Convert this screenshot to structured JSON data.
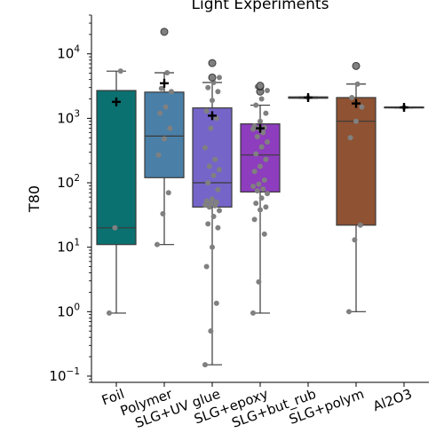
{
  "chart_data": {
    "type": "box",
    "title": "Light Experiments",
    "xlabel": "",
    "ylabel": "T80",
    "yscale": "log",
    "ylim": [
      0.08,
      40000
    ],
    "yticks": [
      {
        "value": 0.1,
        "base": "10",
        "exp": "−1"
      },
      {
        "value": 1,
        "base": "10",
        "exp": "0"
      },
      {
        "value": 10,
        "base": "10",
        "exp": "1"
      },
      {
        "value": 100,
        "base": "10",
        "exp": "2"
      },
      {
        "value": 1000,
        "base": "10",
        "exp": "3"
      },
      {
        "value": 10000,
        "base": "10",
        "exp": "4"
      }
    ],
    "categories": [
      "Foil",
      "Polymer",
      "SLG+UV glue",
      "SLG+epoxy",
      "SLG+but_rub",
      "SLG+polym",
      "Al2O3"
    ],
    "colors": [
      "#0b7070",
      "#4a7fa7",
      "#7565c9",
      "#8d3dbd",
      "#8c4fa3",
      "#8f5232",
      "#7a6f65"
    ],
    "point_color": "#808080",
    "mean_marker": "+",
    "boxes": [
      {
        "q1": 11,
        "median": 20,
        "q3": 2700,
        "whisker_low": 0.95,
        "whisker_high": 5400,
        "mean": 1800,
        "outliers": [],
        "points": [
          0.95,
          20,
          5400
        ]
      },
      {
        "q1": 120,
        "median": 530,
        "q3": 2550,
        "whisker_low": 11,
        "whisker_high": 5100,
        "mean": 3500,
        "outliers": [
          22000
        ],
        "points": [
          11,
          33,
          70,
          270,
          480,
          700,
          1200,
          1500,
          2600,
          2900,
          5100
        ]
      },
      {
        "q1": 42,
        "median": 100,
        "q3": 1450,
        "whisker_low": 0.15,
        "whisker_high": 3600,
        "mean": 1100,
        "outliers": [
          4300,
          7200
        ],
        "points": [
          0.15,
          0.5,
          1.35,
          5,
          10,
          20,
          23,
          30,
          37,
          42,
          44,
          45,
          48,
          50,
          52,
          56,
          78,
          100,
          130,
          160,
          180,
          230,
          350,
          700,
          1000,
          1300,
          1900,
          2600,
          3000,
          3600,
          4300
        ]
      },
      {
        "q1": 72,
        "median": 270,
        "q3": 820,
        "whisker_low": 0.95,
        "whisker_high": 1600,
        "mean": 700,
        "outliers": [
          2600,
          3100,
          3200
        ],
        "points": [
          0.95,
          2.9,
          16,
          27,
          38,
          42,
          48,
          58,
          68,
          75,
          80,
          88,
          95,
          110,
          150,
          180,
          230,
          280,
          360,
          430,
          520,
          600,
          680,
          700,
          720,
          760,
          900,
          1200,
          1600,
          2000,
          2700,
          3100
        ]
      },
      {
        "q1": 2050,
        "median": 2100,
        "q3": 2150,
        "whisker_low": 2050,
        "whisker_high": 2150,
        "mean": 2100,
        "outliers": [],
        "points": [
          2100
        ]
      },
      {
        "q1": 22,
        "median": 900,
        "q3": 2100,
        "whisker_low": 1,
        "whisker_high": 3400,
        "mean": 1700,
        "outliers": [
          6500
        ],
        "points": [
          1,
          13,
          22,
          500,
          900,
          1500,
          2100,
          3400
        ]
      },
      {
        "q1": 1450,
        "median": 1480,
        "q3": 1500,
        "whisker_low": 1450,
        "whisker_high": 1500,
        "mean": 1480,
        "outliers": [],
        "points": [
          1480
        ]
      }
    ]
  }
}
